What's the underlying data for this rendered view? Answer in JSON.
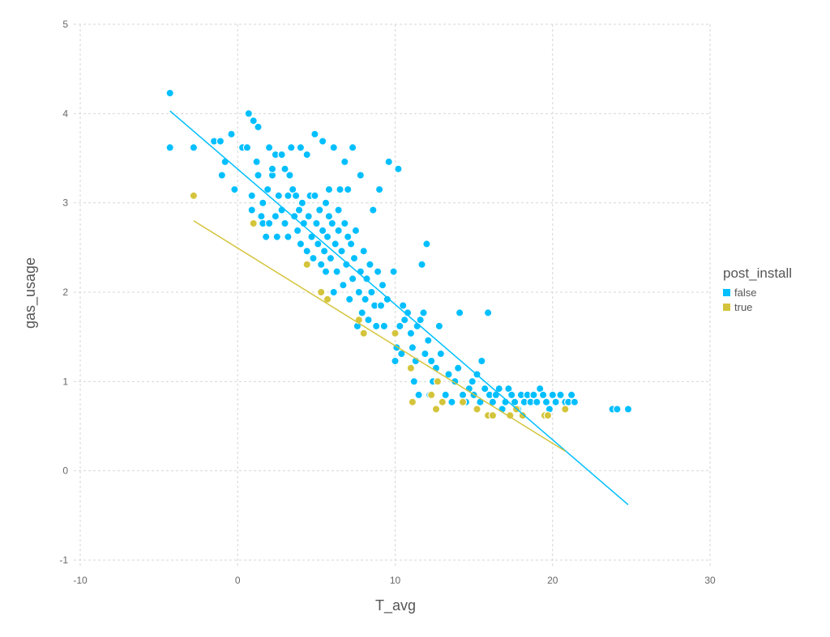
{
  "chart_data": {
    "type": "scatter",
    "xlabel": "T_avg",
    "ylabel": "gas_usage",
    "xlim": [
      -10,
      30
    ],
    "ylim": [
      -1,
      5
    ],
    "xticks": [
      "-10",
      "0",
      "10",
      "20",
      "30"
    ],
    "yticks": [
      "-1",
      "0",
      "1",
      "2",
      "3",
      "4",
      "5"
    ],
    "grid": true,
    "legend": {
      "title": "post_install",
      "placement": "right"
    },
    "series": [
      {
        "name": "false",
        "color": "#00BFFF",
        "points": [
          [
            -4.3,
            4.23
          ],
          [
            -4.3,
            3.62
          ],
          [
            -2.8,
            3.62
          ],
          [
            -1.5,
            3.69
          ],
          [
            -1.1,
            3.69
          ],
          [
            -0.8,
            3.46
          ],
          [
            -0.4,
            3.77
          ],
          [
            -0.2,
            3.15
          ],
          [
            -1.0,
            3.31
          ],
          [
            0.3,
            3.62
          ],
          [
            0.6,
            3.62
          ],
          [
            0.7,
            4.0
          ],
          [
            0.9,
            3.08
          ],
          [
            0.9,
            2.92
          ],
          [
            1.0,
            3.92
          ],
          [
            1.3,
            3.85
          ],
          [
            1.2,
            3.46
          ],
          [
            1.3,
            3.31
          ],
          [
            1.5,
            2.85
          ],
          [
            1.6,
            3.0
          ],
          [
            1.6,
            2.77
          ],
          [
            1.8,
            2.62
          ],
          [
            1.9,
            3.15
          ],
          [
            2.0,
            2.77
          ],
          [
            2.0,
            3.62
          ],
          [
            2.2,
            3.31
          ],
          [
            2.2,
            3.38
          ],
          [
            2.4,
            2.85
          ],
          [
            2.4,
            3.54
          ],
          [
            2.5,
            2.62
          ],
          [
            2.6,
            3.08
          ],
          [
            2.8,
            3.54
          ],
          [
            2.8,
            2.92
          ],
          [
            3.0,
            3.38
          ],
          [
            3.0,
            2.77
          ],
          [
            3.2,
            3.08
          ],
          [
            3.2,
            2.62
          ],
          [
            3.3,
            3.31
          ],
          [
            3.4,
            3.62
          ],
          [
            3.5,
            3.15
          ],
          [
            3.6,
            2.85
          ],
          [
            3.7,
            3.08
          ],
          [
            3.8,
            2.69
          ],
          [
            3.9,
            2.92
          ],
          [
            4.0,
            3.62
          ],
          [
            4.0,
            2.54
          ],
          [
            4.1,
            3.0
          ],
          [
            4.2,
            2.77
          ],
          [
            4.4,
            3.54
          ],
          [
            4.4,
            2.46
          ],
          [
            4.5,
            2.85
          ],
          [
            4.6,
            3.08
          ],
          [
            4.7,
            2.62
          ],
          [
            4.8,
            2.38
          ],
          [
            4.9,
            3.08
          ],
          [
            4.9,
            3.77
          ],
          [
            5.0,
            2.77
          ],
          [
            5.1,
            2.54
          ],
          [
            5.2,
            2.92
          ],
          [
            5.3,
            2.31
          ],
          [
            5.4,
            2.69
          ],
          [
            5.4,
            3.69
          ],
          [
            5.5,
            2.46
          ],
          [
            5.6,
            2.23
          ],
          [
            5.6,
            3.0
          ],
          [
            5.7,
            2.62
          ],
          [
            5.8,
            2.85
          ],
          [
            5.8,
            3.15
          ],
          [
            5.9,
            2.38
          ],
          [
            6.0,
            2.77
          ],
          [
            6.1,
            2.0
          ],
          [
            6.1,
            3.62
          ],
          [
            6.2,
            2.54
          ],
          [
            6.3,
            2.23
          ],
          [
            6.4,
            2.69
          ],
          [
            6.4,
            2.92
          ],
          [
            6.5,
            3.15
          ],
          [
            6.6,
            2.46
          ],
          [
            6.7,
            2.08
          ],
          [
            6.8,
            2.77
          ],
          [
            6.8,
            3.46
          ],
          [
            6.9,
            2.31
          ],
          [
            7.0,
            2.62
          ],
          [
            7.0,
            3.15
          ],
          [
            7.1,
            1.92
          ],
          [
            7.2,
            2.54
          ],
          [
            7.3,
            2.15
          ],
          [
            7.3,
            3.62
          ],
          [
            7.4,
            2.38
          ],
          [
            7.5,
            2.69
          ],
          [
            7.6,
            1.62
          ],
          [
            7.7,
            2.0
          ],
          [
            7.8,
            2.23
          ],
          [
            7.8,
            3.31
          ],
          [
            7.9,
            1.77
          ],
          [
            8.0,
            2.46
          ],
          [
            8.1,
            1.92
          ],
          [
            8.2,
            2.15
          ],
          [
            8.3,
            1.69
          ],
          [
            8.4,
            2.31
          ],
          [
            8.5,
            2.0
          ],
          [
            8.6,
            2.92
          ],
          [
            8.7,
            1.85
          ],
          [
            8.8,
            1.62
          ],
          [
            8.9,
            2.23
          ],
          [
            9.0,
            3.15
          ],
          [
            9.1,
            1.85
          ],
          [
            9.2,
            2.08
          ],
          [
            9.3,
            1.62
          ],
          [
            9.5,
            1.92
          ],
          [
            9.6,
            3.46
          ],
          [
            9.9,
            2.23
          ],
          [
            10.0,
            1.23
          ],
          [
            10.1,
            1.38
          ],
          [
            10.2,
            3.38
          ],
          [
            10.3,
            1.62
          ],
          [
            10.4,
            1.31
          ],
          [
            10.5,
            1.85
          ],
          [
            10.6,
            1.69
          ],
          [
            10.8,
            1.77
          ],
          [
            11.0,
            1.54
          ],
          [
            11.1,
            1.38
          ],
          [
            11.2,
            1.0
          ],
          [
            11.3,
            1.23
          ],
          [
            11.4,
            1.62
          ],
          [
            11.5,
            0.85
          ],
          [
            11.6,
            1.69
          ],
          [
            11.7,
            2.31
          ],
          [
            11.8,
            1.77
          ],
          [
            11.9,
            1.31
          ],
          [
            12.0,
            2.54
          ],
          [
            12.1,
            1.46
          ],
          [
            12.2,
            0.85
          ],
          [
            12.3,
            1.23
          ],
          [
            12.4,
            1.0
          ],
          [
            12.6,
            1.15
          ],
          [
            12.8,
            1.62
          ],
          [
            12.9,
            1.31
          ],
          [
            13.0,
            0.77
          ],
          [
            13.2,
            0.85
          ],
          [
            13.4,
            1.08
          ],
          [
            13.6,
            0.77
          ],
          [
            13.8,
            1.0
          ],
          [
            14.0,
            1.15
          ],
          [
            14.1,
            1.77
          ],
          [
            14.3,
            0.85
          ],
          [
            14.5,
            0.77
          ],
          [
            14.7,
            0.92
          ],
          [
            14.9,
            1.0
          ],
          [
            15.0,
            0.85
          ],
          [
            15.2,
            1.08
          ],
          [
            15.4,
            0.77
          ],
          [
            15.5,
            1.23
          ],
          [
            15.7,
            0.92
          ],
          [
            15.9,
            1.77
          ],
          [
            16.0,
            0.85
          ],
          [
            16.2,
            0.77
          ],
          [
            16.4,
            0.85
          ],
          [
            16.6,
            0.92
          ],
          [
            16.8,
            0.69
          ],
          [
            17.0,
            0.77
          ],
          [
            17.2,
            0.92
          ],
          [
            17.4,
            0.85
          ],
          [
            17.6,
            0.77
          ],
          [
            17.8,
            0.69
          ],
          [
            18.0,
            0.85
          ],
          [
            18.2,
            0.77
          ],
          [
            18.4,
            0.85
          ],
          [
            18.6,
            0.77
          ],
          [
            18.8,
            0.85
          ],
          [
            19.0,
            0.77
          ],
          [
            19.2,
            0.92
          ],
          [
            19.4,
            0.85
          ],
          [
            19.6,
            0.77
          ],
          [
            19.8,
            0.69
          ],
          [
            20.0,
            0.85
          ],
          [
            20.2,
            0.77
          ],
          [
            20.5,
            0.85
          ],
          [
            20.8,
            0.77
          ],
          [
            21.0,
            0.77
          ],
          [
            21.2,
            0.85
          ],
          [
            21.4,
            0.77
          ],
          [
            23.8,
            0.69
          ],
          [
            24.1,
            0.69
          ],
          [
            24.8,
            0.69
          ]
        ],
        "trend": [
          [
            -4.3,
            4.03
          ],
          [
            24.8,
            -0.38
          ]
        ]
      },
      {
        "name": "true",
        "color": "#D4C43B",
        "points": [
          [
            -2.8,
            3.08
          ],
          [
            1.0,
            2.77
          ],
          [
            4.4,
            2.31
          ],
          [
            5.3,
            2.0
          ],
          [
            5.7,
            1.92
          ],
          [
            7.7,
            1.69
          ],
          [
            8.0,
            1.54
          ],
          [
            10.0,
            1.54
          ],
          [
            11.0,
            1.15
          ],
          [
            11.1,
            0.77
          ],
          [
            12.3,
            0.85
          ],
          [
            12.6,
            0.69
          ],
          [
            12.7,
            1.0
          ],
          [
            13.0,
            0.77
          ],
          [
            14.3,
            0.77
          ],
          [
            15.2,
            0.69
          ],
          [
            15.9,
            0.62
          ],
          [
            16.2,
            0.62
          ],
          [
            17.3,
            0.62
          ],
          [
            17.7,
            0.69
          ],
          [
            18.1,
            0.62
          ],
          [
            19.5,
            0.62
          ],
          [
            19.7,
            0.62
          ],
          [
            20.8,
            0.69
          ]
        ],
        "trend": [
          [
            -2.8,
            2.8
          ],
          [
            20.8,
            0.22
          ]
        ]
      }
    ]
  }
}
